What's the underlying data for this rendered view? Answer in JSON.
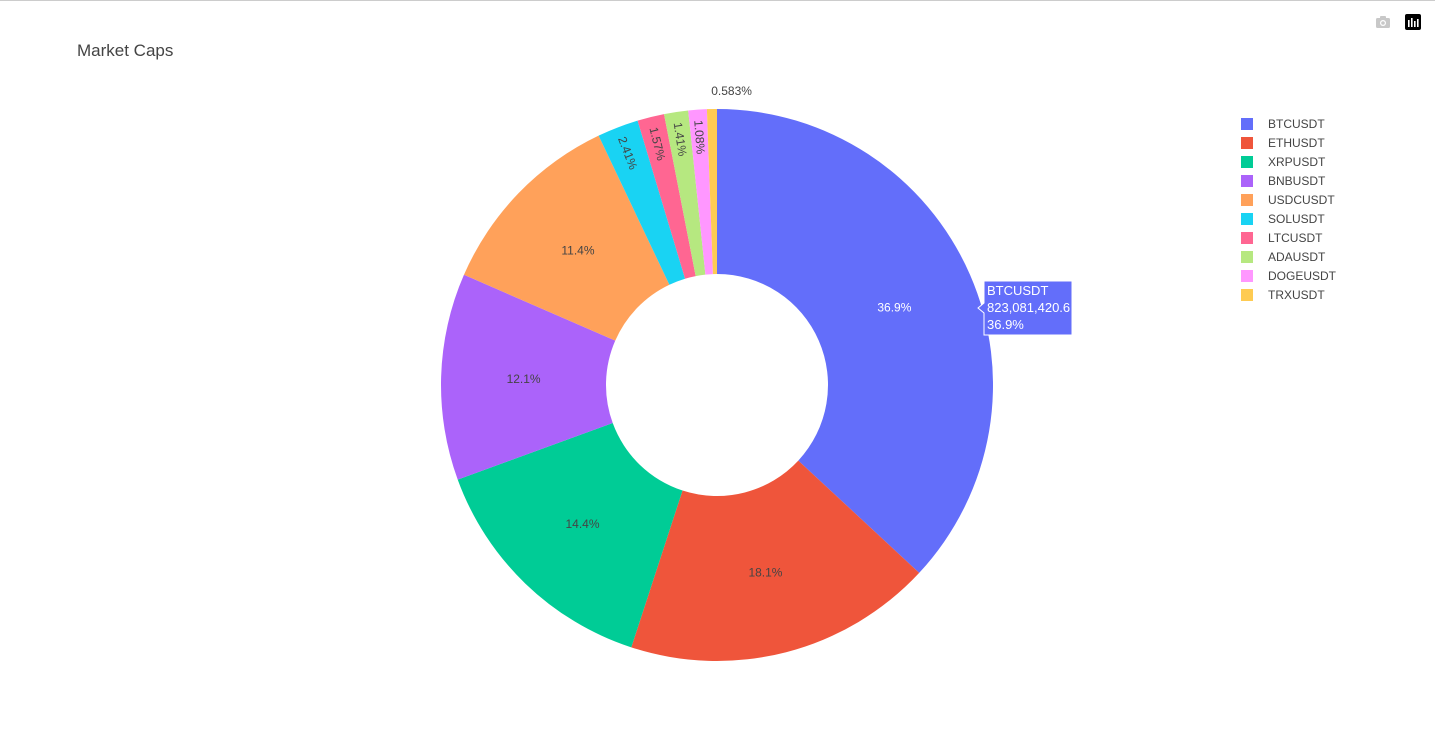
{
  "chart_data": {
    "type": "pie",
    "hole": true,
    "title": "Market Caps",
    "labels": [
      "BTCUSDT",
      "ETHUSDT",
      "XRPUSDT",
      "BNBUSDT",
      "USDCUSDT",
      "SOLUSDT",
      "LTCUSDT",
      "ADAUSDT",
      "DOGEUSDT",
      "TRXUSDT"
    ],
    "percents": [
      36.9,
      18.1,
      14.4,
      12.1,
      11.4,
      2.41,
      1.57,
      1.41,
      1.08,
      0.583
    ],
    "percent_labels": [
      "36.9%",
      "18.1%",
      "14.4%",
      "12.1%",
      "11.4%",
      "2.41%",
      "1.57%",
      "1.41%",
      "1.08%",
      "0.583%"
    ],
    "colors": [
      "#636efa",
      "#EF553B",
      "#00cc96",
      "#ab63fa",
      "#FFA15A",
      "#19d3f3",
      "#FF6692",
      "#B6E880",
      "#FF97FF",
      "#FECB52"
    ],
    "legend_position": "top-right",
    "hover": {
      "label": "BTCUSDT",
      "value": "823,081,420.6",
      "percent": "36.9%"
    }
  },
  "modebar": {
    "icons": [
      "camera-icon",
      "plotly-logo-icon"
    ]
  }
}
